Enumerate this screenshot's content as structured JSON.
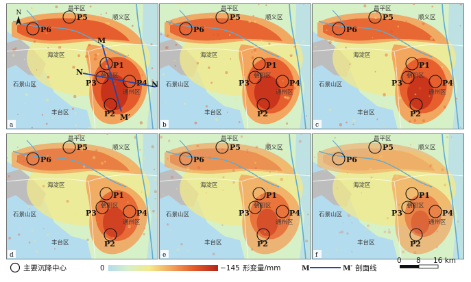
{
  "panels": [
    {
      "tag": "a",
      "intensity": 1.0
    },
    {
      "tag": "b",
      "intensity": 0.92
    },
    {
      "tag": "c",
      "intensity": 0.9
    },
    {
      "tag": "d",
      "intensity": 0.7
    },
    {
      "tag": "e",
      "intensity": 0.55
    },
    {
      "tag": "f",
      "intensity": 0.35
    }
  ],
  "districts": [
    "昌平区",
    "顺义区",
    "海淀区",
    "朝阳区",
    "石景山区",
    "通州区",
    "丰台区"
  ],
  "points": [
    "P1",
    "P2",
    "P3",
    "P4",
    "P5",
    "P6"
  ],
  "profile": {
    "start": "M",
    "end": "M′",
    "cross_start": "N",
    "cross_end": "N′"
  },
  "compass": "N",
  "legend": {
    "center_label": "主要沉降中心",
    "scale_min": "0",
    "scale_max": "−145",
    "scale_unit": "形变量/mm",
    "profile_start": "M",
    "profile_end": "M′",
    "profile_label": "剖面线",
    "distance_ticks": [
      "0",
      "8",
      "16 km"
    ]
  },
  "colors": {
    "water": "#b3dcef",
    "hills": "#bdbdbd",
    "stable": "#d6f0c8",
    "slight": "#f3e98a",
    "moderate": "#f2a25b",
    "strong": "#e55a2a",
    "severe": "#c7321b",
    "profile_line": "#2048a8"
  }
}
